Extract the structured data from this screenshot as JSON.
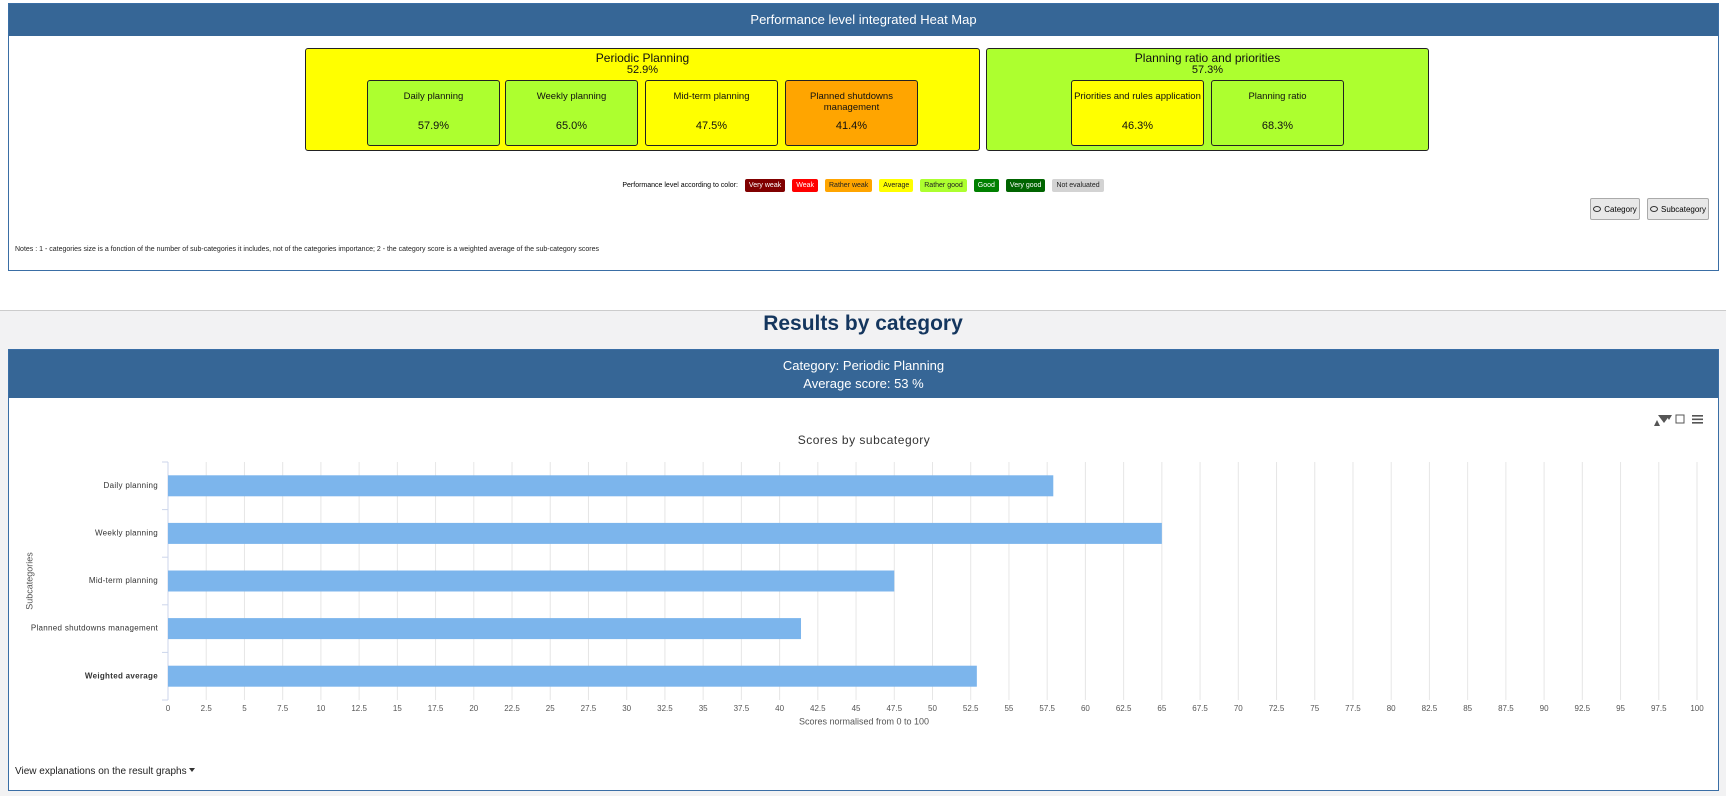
{
  "heatmap": {
    "title": "Performance level integrated Heat Map",
    "categories": [
      {
        "name": "Periodic Planning",
        "score": "52.9%",
        "color": "#ffff00",
        "subcategories": [
          {
            "name": "Daily planning",
            "score": "57.9%",
            "color": "#adff2f"
          },
          {
            "name": "Weekly planning",
            "score": "65.0%",
            "color": "#adff2f"
          },
          {
            "name": "Mid-term planning",
            "score": "47.5%",
            "color": "#ffff00"
          },
          {
            "name": "Planned shutdowns management",
            "score": "41.4%",
            "color": "#ffa500"
          }
        ]
      },
      {
        "name": "Planning ratio and priorities",
        "score": "57.3%",
        "color": "#adff2f",
        "subcategories": [
          {
            "name": "Priorities and rules application",
            "score": "46.3%",
            "color": "#ffff00"
          },
          {
            "name": "Planning ratio",
            "score": "68.3%",
            "color": "#adff2f"
          }
        ]
      }
    ],
    "legend": {
      "label": "Performance level according to color:",
      "items": [
        {
          "label": "Very weak",
          "color": "#800000"
        },
        {
          "label": "Weak",
          "color": "#ff0000"
        },
        {
          "label": "Rather weak",
          "color": "#ffa500"
        },
        {
          "label": "Average",
          "color": "#ffff00"
        },
        {
          "label": "Rather good",
          "color": "#adff2f"
        },
        {
          "label": "Good",
          "color": "#008000"
        },
        {
          "label": "Very good",
          "color": "#006400"
        },
        {
          "label": "Not evaluated",
          "color": "#d3d3d3"
        }
      ]
    },
    "buttons": [
      "Category",
      "Subcategory"
    ],
    "notes": "Notes : 1 - categories size is a fonction of the number of sub-categories it includes, not of the categories importance; 2 - the category score is a weighted average of the sub-category scores"
  },
  "results": {
    "title": "Results by category",
    "header": [
      "Category: Periodic Planning",
      "Average score: 53 %"
    ],
    "explanations": "View explanations on the result graphs"
  },
  "chart_data": {
    "type": "hbar",
    "title": "Scores by subcategory",
    "x_label": "Scores normalised from 0 to 100",
    "y_label": "Subcategories",
    "categories": [
      "Daily planning",
      "Weekly planning",
      "Mid-term planning",
      "Planned shutdowns management",
      "Weighted average"
    ],
    "values": [
      57.9,
      65.0,
      47.5,
      41.4,
      52.9
    ],
    "color": "#7cb5ec",
    "xlim": [
      0,
      100
    ],
    "xticks": [
      0,
      2.5,
      5,
      7.5,
      10,
      12.5,
      15,
      17.5,
      20,
      22.5,
      25,
      27.5,
      30,
      32.5,
      35,
      37.5,
      40,
      42.5,
      45,
      47.5,
      50,
      52.5,
      55,
      57.5,
      60,
      62.5,
      65,
      67.5,
      70,
      72.5,
      75,
      77.5,
      80,
      82.5,
      85,
      87.5,
      90,
      92.5,
      95,
      97.5,
      100
    ],
    "grid": true
  }
}
